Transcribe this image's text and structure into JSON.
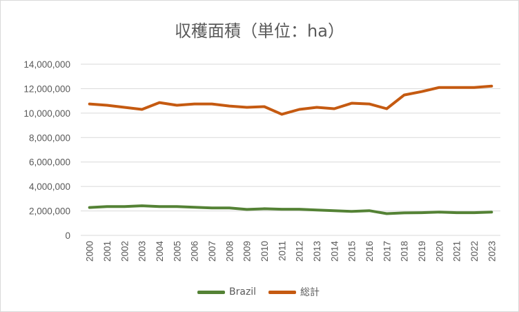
{
  "chart_data": {
    "type": "line",
    "title": "収穫面積（単位：ha）",
    "xlabel": "",
    "ylabel": "",
    "ylim": [
      0,
      14000000
    ],
    "yticks": [
      "0",
      "2,000,000",
      "4,000,000",
      "6,000,000",
      "8,000,000",
      "10,000,000",
      "12,000,000",
      "14,000,000"
    ],
    "categories": [
      "2000",
      "2001",
      "2002",
      "2003",
      "2004",
      "2005",
      "2006",
      "2007",
      "2008",
      "2009",
      "2010",
      "2011",
      "2012",
      "2013",
      "2014",
      "2015",
      "2016",
      "2017",
      "2018",
      "2019",
      "2020",
      "2021",
      "2022",
      "2023"
    ],
    "grid": true,
    "legend_position": "bottom",
    "series": [
      {
        "name": "Brazil",
        "color": "#548235",
        "values": [
          2280000,
          2360000,
          2360000,
          2420000,
          2360000,
          2360000,
          2300000,
          2240000,
          2240000,
          2120000,
          2180000,
          2140000,
          2140000,
          2080000,
          2020000,
          1960000,
          2020000,
          1780000,
          1840000,
          1860000,
          1900000,
          1860000,
          1860000,
          1900000
        ]
      },
      {
        "name": "総計",
        "color": "#c55a11",
        "values": [
          10750000,
          10640000,
          10470000,
          10300000,
          10860000,
          10640000,
          10750000,
          10750000,
          10580000,
          10470000,
          10530000,
          9900000,
          10300000,
          10470000,
          10360000,
          10810000,
          10750000,
          10360000,
          11480000,
          11760000,
          12100000,
          12100000,
          12100000,
          12210000
        ]
      }
    ]
  }
}
